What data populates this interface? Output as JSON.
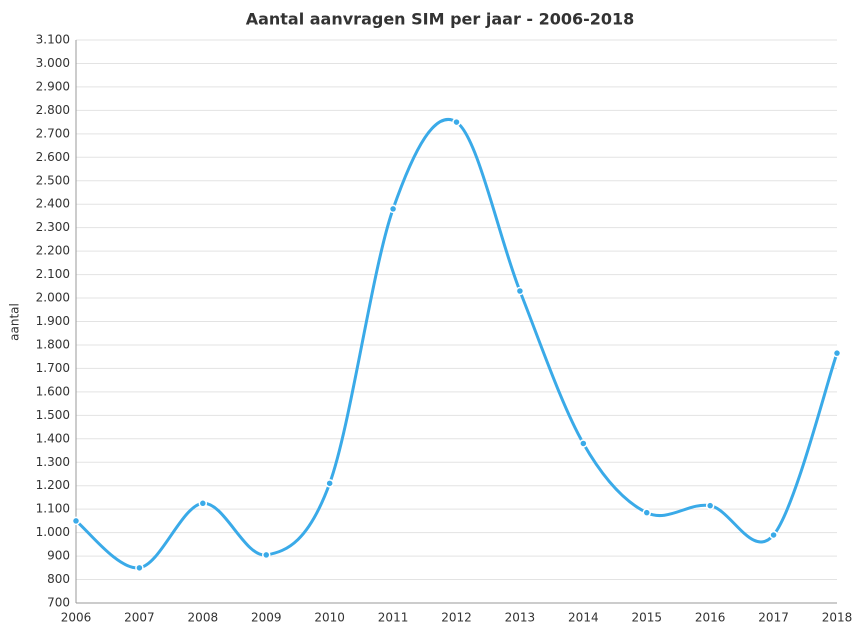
{
  "chart_data": {
    "type": "line",
    "title": "Aantal aanvragen SIM per jaar - 2006-2018",
    "y_label": "aantal",
    "categories": [
      "2006",
      "2007",
      "2008",
      "2009",
      "2010",
      "2011",
      "2012",
      "2013",
      "2014",
      "2015",
      "2016",
      "2017",
      "2018"
    ],
    "series": [
      {
        "name": "aantal",
        "color": "#3aaae8",
        "values": [
          1050,
          850,
          1125,
          905,
          1210,
          2380,
          2750,
          2030,
          1380,
          1085,
          1115,
          990,
          1765
        ]
      }
    ],
    "ylim": [
      700,
      3100
    ],
    "yticks": [
      700,
      800,
      900,
      {
        "value": 1000,
        "label": "1.000"
      },
      {
        "value": 1100,
        "label": "1.100"
      },
      {
        "value": 1200,
        "label": "1.200"
      },
      {
        "value": 1300,
        "label": "1.300"
      },
      {
        "value": 1400,
        "label": "1.400"
      },
      {
        "value": 1500,
        "label": "1.500"
      },
      {
        "value": 1600,
        "label": "1.600"
      },
      {
        "value": 1700,
        "label": "1.700"
      },
      {
        "value": 1800,
        "label": "1.800"
      },
      {
        "value": 1900,
        "label": "1.900"
      },
      {
        "value": 2000,
        "label": "2.000"
      },
      {
        "value": 2100,
        "label": "2.100"
      },
      {
        "value": 2200,
        "label": "2.200"
      },
      {
        "value": 2300,
        "label": "2.300"
      },
      {
        "value": 2400,
        "label": "2.400"
      },
      {
        "value": 2500,
        "label": "2.500"
      },
      {
        "value": 2600,
        "label": "2.600"
      },
      {
        "value": 2700,
        "label": "2.700"
      },
      {
        "value": 2800,
        "label": "2.800"
      },
      {
        "value": 2900,
        "label": "2.900"
      },
      {
        "value": 3000,
        "label": "3.000"
      },
      {
        "value": 3100,
        "label": "3.100"
      }
    ],
    "grid": true
  }
}
